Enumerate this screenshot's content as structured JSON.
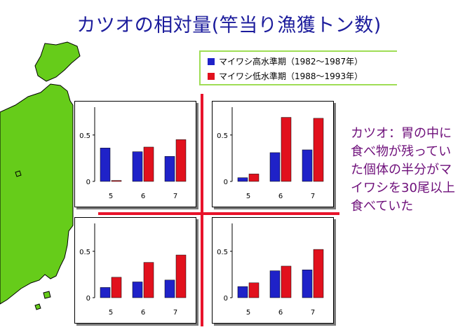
{
  "title": "カツオの相対量(竿当り漁獲トン数)",
  "legend": [
    {
      "label": "マイワシ高水準期（1982～1987年）",
      "color": "#1f22c8"
    },
    {
      "label": "マイワシ低水準期（1988～1993年）",
      "color": "#e1111d"
    }
  ],
  "note": "カツオ：胃の中に食べ物が残っていた個体の半分がマイワシを30尾以上食べていた",
  "colors": {
    "map_land": "#66cc1a",
    "cross": "#e8132b",
    "title": "#1c1c9c",
    "note": "#6e0f7a"
  },
  "chart_data": [
    {
      "type": "bar",
      "categories": [
        "5",
        "6",
        "7"
      ],
      "yticks": [
        "0",
        "0.5"
      ],
      "ylim": [
        0,
        0.8
      ],
      "series": [
        {
          "name": "マイワシ高水準期（1982～1987年）",
          "values": [
            0.36,
            0.32,
            0.27
          ]
        },
        {
          "name": "マイワシ低水準期（1988～1993年）",
          "values": [
            0.01,
            0.37,
            0.45
          ]
        }
      ]
    },
    {
      "type": "bar",
      "categories": [
        "5",
        "6",
        "7"
      ],
      "yticks": [
        "0",
        "0.5"
      ],
      "ylim": [
        0,
        0.8
      ],
      "series": [
        {
          "name": "マイワシ高水準期（1982～1987年）",
          "values": [
            0.04,
            0.31,
            0.34
          ]
        },
        {
          "name": "マイワシ低水準期（1988～1993年）",
          "values": [
            0.08,
            0.69,
            0.68
          ]
        }
      ]
    },
    {
      "type": "bar",
      "categories": [
        "5",
        "6",
        "7"
      ],
      "yticks": [
        "0",
        "0.5"
      ],
      "ylim": [
        0,
        0.8
      ],
      "series": [
        {
          "name": "マイワシ高水準期（1982～1987年）",
          "values": [
            0.11,
            0.17,
            0.19
          ]
        },
        {
          "name": "マイワシ低水準期（1988～1993年）",
          "values": [
            0.22,
            0.38,
            0.46
          ]
        }
      ]
    },
    {
      "type": "bar",
      "categories": [
        "5",
        "6",
        "7"
      ],
      "yticks": [
        "0",
        "0.5"
      ],
      "ylim": [
        0,
        0.8
      ],
      "series": [
        {
          "name": "マイワシ高水準期（1982～1987年）",
          "values": [
            0.12,
            0.29,
            0.3
          ]
        },
        {
          "name": "マイワシ低水準期（1988～1993年）",
          "values": [
            0.16,
            0.34,
            0.52
          ]
        }
      ]
    }
  ]
}
